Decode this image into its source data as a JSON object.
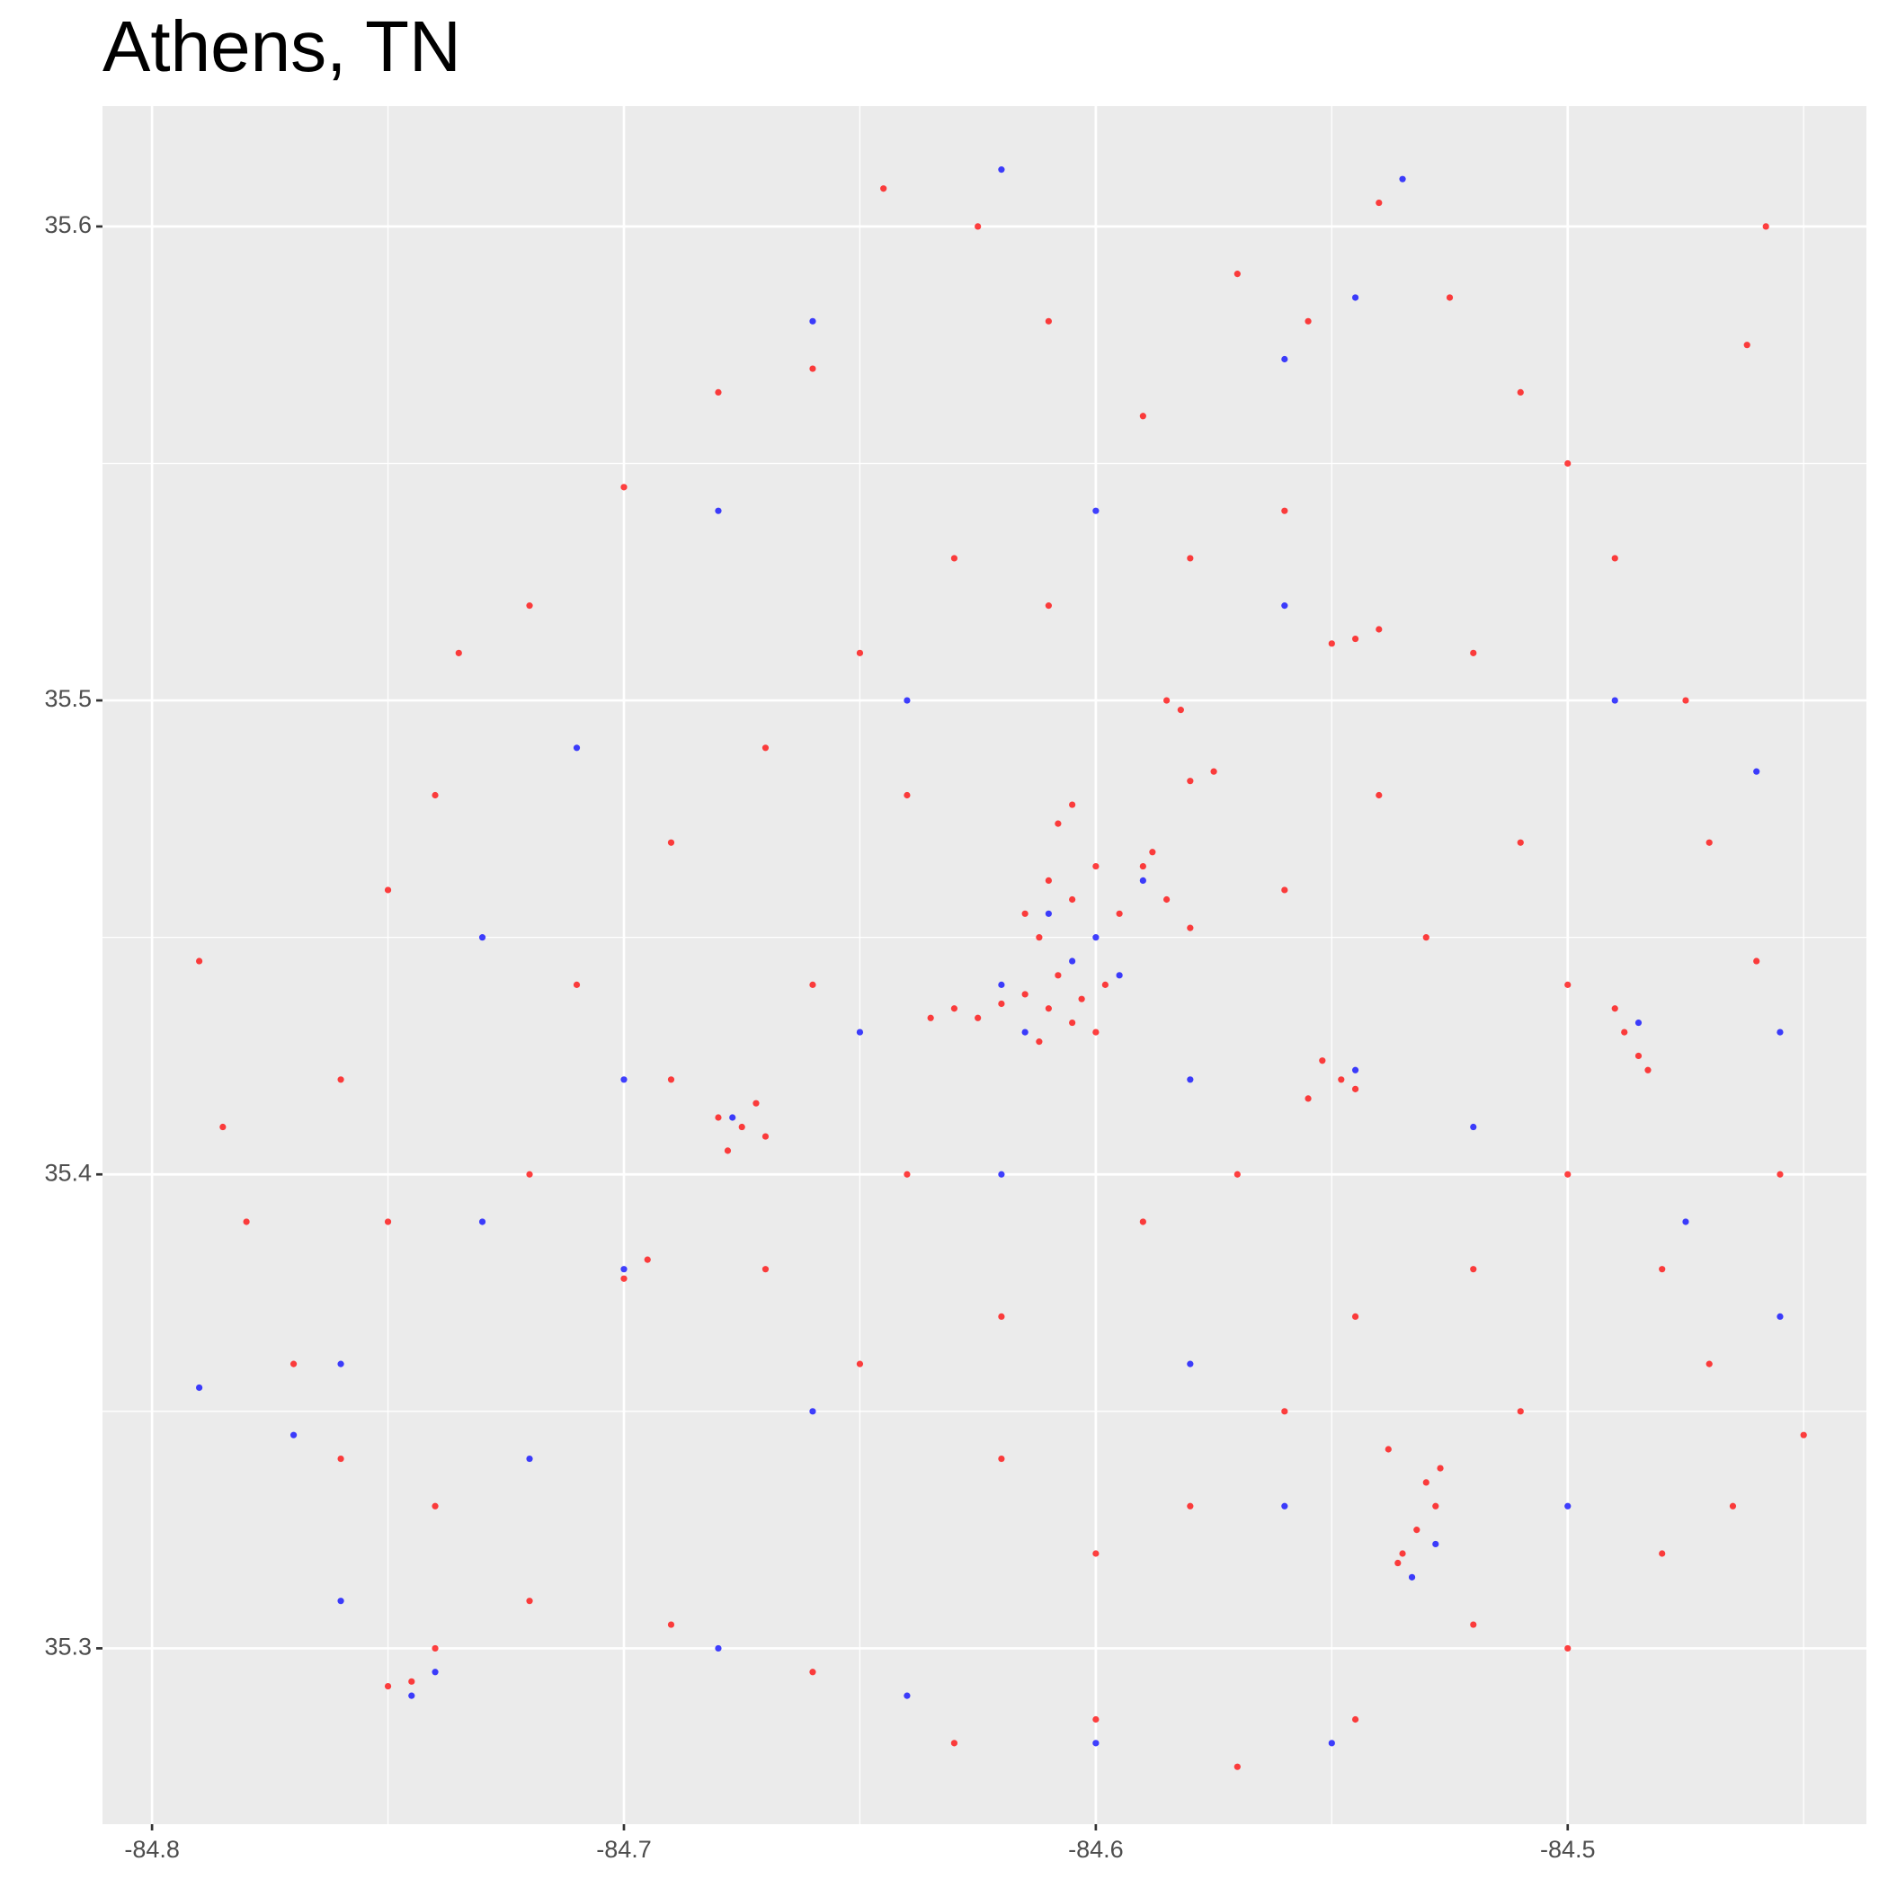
{
  "chart_data": {
    "type": "scatter",
    "title": "Athens, TN",
    "xlim": [
      -84.8105,
      -84.4367
    ],
    "ylim": [
      35.2629,
      35.6254
    ],
    "xticks": [
      -84.8,
      -84.7,
      -84.6,
      -84.5
    ],
    "yticks": [
      35.3,
      35.4,
      35.5,
      35.6
    ],
    "xminor": [
      -84.75,
      -84.65,
      -84.55,
      -84.45
    ],
    "yminor": [
      35.35,
      35.45,
      35.55
    ],
    "grid": true,
    "series": [
      {
        "color": "#ff0000",
        "x": [
          -84.61,
          -84.605,
          -84.615,
          -84.6,
          -84.62,
          -84.612,
          -84.598,
          -84.608,
          -84.625,
          -84.603,
          -84.61,
          -84.605,
          -84.615,
          -84.6,
          -84.612,
          -84.59,
          -84.585,
          -84.595,
          -84.58,
          -84.588,
          -84.605,
          -84.608,
          -84.58,
          -84.575,
          -84.675,
          -84.678,
          -84.672,
          -84.68,
          -84.67,
          -84.488,
          -84.485,
          -84.49,
          -84.483,
          -84.548,
          -84.552,
          -84.545,
          -84.555,
          -84.532,
          -84.535,
          -84.528,
          -84.536,
          -84.53,
          -84.538,
          -84.527,
          -84.545,
          -84.54,
          -84.55,
          -84.582,
          -84.585,
          -84.63,
          -84.635,
          -84.7,
          -84.695,
          -84.79,
          -84.785,
          -84.78,
          -84.77,
          -84.76,
          -84.75,
          -84.74,
          -84.735,
          -84.72,
          -84.7,
          -84.68,
          -84.66,
          -84.645,
          -84.625,
          -84.61,
          -84.59,
          -84.57,
          -84.555,
          -84.54,
          -84.525,
          -84.51,
          -84.5,
          -84.49,
          -84.475,
          -84.47,
          -84.46,
          -84.455,
          -84.45,
          -84.465,
          -84.48,
          -84.5,
          -84.52,
          -84.545,
          -84.57,
          -84.6,
          -84.63,
          -84.66,
          -84.69,
          -84.72,
          -84.74,
          -84.76,
          -84.75,
          -84.72,
          -84.71,
          -84.69,
          -84.67,
          -84.65,
          -84.63,
          -84.61,
          -84.58,
          -84.56,
          -84.52,
          -84.51,
          -84.53,
          -84.56,
          -84.57,
          -84.59,
          -84.62,
          -84.65,
          -84.67,
          -84.64,
          -84.66,
          -84.69,
          -84.56,
          -84.58,
          -84.6,
          -84.62,
          -84.52,
          -84.5,
          -84.48,
          -84.47,
          -84.51,
          -84.545,
          -84.64,
          -84.54,
          -84.5,
          -84.74,
          -84.745,
          -84.75,
          -84.458,
          -84.462
        ],
        "y": [
          35.435,
          35.432,
          35.438,
          35.43,
          35.436,
          35.428,
          35.44,
          35.442,
          35.433,
          35.437,
          35.462,
          35.458,
          35.455,
          35.465,
          35.45,
          35.465,
          35.458,
          35.455,
          35.452,
          35.468,
          35.478,
          35.474,
          35.483,
          35.485,
          35.41,
          35.405,
          35.415,
          35.412,
          35.408,
          35.43,
          35.425,
          35.435,
          35.422,
          35.42,
          35.424,
          35.418,
          35.416,
          35.325,
          35.32,
          35.33,
          35.318,
          35.335,
          35.342,
          35.338,
          35.513,
          35.515,
          35.512,
          35.498,
          35.5,
          35.435,
          35.433,
          35.378,
          35.382,
          35.445,
          35.41,
          35.39,
          35.36,
          35.42,
          35.46,
          35.48,
          35.51,
          35.52,
          35.545,
          35.565,
          35.57,
          35.608,
          35.6,
          35.58,
          35.56,
          35.59,
          35.58,
          35.605,
          35.585,
          35.565,
          35.55,
          35.53,
          35.5,
          35.47,
          35.445,
          35.4,
          35.345,
          35.33,
          35.32,
          35.3,
          35.305,
          35.285,
          35.275,
          35.285,
          35.28,
          35.295,
          35.305,
          35.31,
          35.33,
          35.34,
          35.39,
          35.4,
          35.44,
          35.47,
          35.49,
          35.51,
          35.53,
          35.52,
          35.53,
          35.54,
          35.51,
          35.47,
          35.45,
          35.46,
          35.4,
          35.39,
          35.37,
          35.36,
          35.38,
          35.4,
          35.44,
          35.42,
          35.35,
          35.33,
          35.32,
          35.34,
          35.38,
          35.4,
          35.38,
          35.36,
          35.35,
          35.37,
          35.48,
          35.48,
          35.44,
          35.3,
          35.293,
          35.292,
          35.6,
          35.575
        ]
      },
      {
        "color": "#0000ff",
        "x": [
          -84.605,
          -84.6,
          -84.595,
          -84.615,
          -84.59,
          -84.61,
          -84.62,
          -84.545,
          -84.485,
          -84.533,
          -84.528,
          -84.745,
          -84.74,
          -84.677,
          -84.7,
          -84.79,
          -84.77,
          -84.73,
          -84.71,
          -84.68,
          -84.66,
          -84.62,
          -84.56,
          -84.535,
          -84.545,
          -84.49,
          -84.46,
          -84.455,
          -84.475,
          -84.5,
          -84.55,
          -84.6,
          -84.64,
          -84.68,
          -84.72,
          -84.76,
          -84.65,
          -84.62,
          -84.58,
          -84.56,
          -84.6,
          -84.64,
          -84.7,
          -84.73,
          -84.56,
          -84.52,
          -84.58,
          -84.66,
          -84.76,
          -84.455
        ],
        "y": [
          35.445,
          35.45,
          35.442,
          35.43,
          35.462,
          35.455,
          35.44,
          35.422,
          35.432,
          35.315,
          35.322,
          35.29,
          35.295,
          35.412,
          35.38,
          35.355,
          35.345,
          35.45,
          35.49,
          35.54,
          35.58,
          35.612,
          35.572,
          35.61,
          35.585,
          35.5,
          35.485,
          35.43,
          35.39,
          35.33,
          35.28,
          35.28,
          35.29,
          35.3,
          35.34,
          35.36,
          35.43,
          35.4,
          35.42,
          35.52,
          35.54,
          35.5,
          35.42,
          35.39,
          35.33,
          35.41,
          35.36,
          35.35,
          35.31,
          35.37
        ]
      }
    ]
  }
}
